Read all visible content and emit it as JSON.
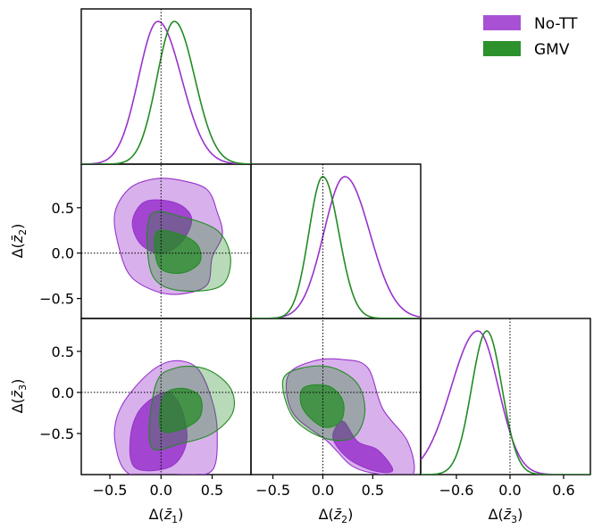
{
  "chart_data": {
    "type": "triangle-corner-plot",
    "parameters": [
      "Δ(z̄1)",
      "Δ(z̄2)",
      "Δ(z̄3)"
    ],
    "axis_labels": {
      "p1": {
        "pre": "Δ(",
        "z": "z̄",
        "sub": "1",
        "post": ")"
      },
      "p2": {
        "pre": "Δ(",
        "z": "z̄",
        "sub": "2",
        "post": ")"
      },
      "p3": {
        "pre": "Δ(",
        "z": "z̄",
        "sub": "3",
        "post": ")"
      }
    },
    "ranges": {
      "p1": [
        -0.78,
        0.88
      ],
      "p2": [
        -0.72,
        0.98
      ],
      "p3": [
        -1.0,
        0.9
      ]
    },
    "ticks": {
      "p1": {
        "values": [
          -0.5,
          0.0,
          0.5
        ],
        "labels": [
          "−0.5",
          "0.0",
          "0.5"
        ]
      },
      "p2_x": {
        "values": [
          -0.5,
          0.0,
          0.5
        ],
        "labels": [
          "−0.5",
          "0.0",
          "0.5"
        ]
      },
      "p2_y": {
        "values": [
          0.5,
          0.0,
          -0.5
        ],
        "labels": [
          "0.5",
          "0.0",
          "−0.5"
        ]
      },
      "p3_x": {
        "values": [
          -0.6,
          0.0,
          0.6
        ],
        "labels": [
          "−0.6",
          "0.0",
          "0.6"
        ]
      },
      "p3_y": {
        "values": [
          0.5,
          0.0,
          -0.5
        ],
        "labels": [
          "0.5",
          "0.0",
          "−0.5"
        ]
      }
    },
    "reference_lines": {
      "p1": 0.0,
      "p2": 0.0,
      "p3": 0.0
    },
    "series": [
      {
        "name": "No-TT",
        "color": "#9932cc",
        "marginals": {
          "p1": {
            "mean": -0.03,
            "sd_left": 0.19,
            "sd_right": 0.23
          },
          "p2": {
            "mean": 0.22,
            "sd_left": 0.21,
            "sd_right": 0.25
          },
          "p3": {
            "mean": -0.36,
            "sd_left": 0.3,
            "sd_right": 0.23
          }
        },
        "contours": {
          "p1_p2": {
            "outer": [
              [
                -0.05,
                0.82
              ],
              [
                0.2,
                0.8
              ],
              [
                0.45,
                0.7
              ],
              [
                0.55,
                0.45
              ],
              [
                0.6,
                0.2
              ],
              [
                0.5,
                -0.05
              ],
              [
                0.45,
                -0.35
              ],
              [
                0.2,
                -0.45
              ],
              [
                -0.05,
                -0.42
              ],
              [
                -0.3,
                -0.25
              ],
              [
                -0.42,
                0.1
              ],
              [
                -0.45,
                0.45
              ],
              [
                -0.3,
                0.72
              ]
            ],
            "inner": [
              [
                -0.15,
                0.57
              ],
              [
                0.15,
                0.55
              ],
              [
                0.3,
                0.38
              ],
              [
                0.2,
                0.12
              ],
              [
                0.0,
                0.0
              ],
              [
                -0.2,
                0.1
              ],
              [
                -0.28,
                0.35
              ]
            ]
          },
          "p1_p3": {
            "outer": [
              [
                -0.3,
                -1.0
              ],
              [
                -0.45,
                -0.6
              ],
              [
                -0.4,
                -0.2
              ],
              [
                -0.15,
                0.2
              ],
              [
                0.1,
                0.38
              ],
              [
                0.35,
                0.3
              ],
              [
                0.5,
                -0.1
              ],
              [
                0.55,
                -0.5
              ],
              [
                0.5,
                -0.95
              ],
              [
                0.2,
                -1.0
              ]
            ],
            "inner": [
              [
                -0.25,
                -0.92
              ],
              [
                -0.3,
                -0.55
              ],
              [
                -0.2,
                -0.2
              ],
              [
                0.05,
                0.0
              ],
              [
                0.2,
                -0.2
              ],
              [
                0.25,
                -0.6
              ],
              [
                0.1,
                -0.9
              ]
            ]
          },
          "p2_p3": {
            "outer": [
              [
                -0.35,
                0.2
              ],
              [
                -0.1,
                0.38
              ],
              [
                0.2,
                0.4
              ],
              [
                0.45,
                0.3
              ],
              [
                0.6,
                -0.2
              ],
              [
                0.85,
                -0.6
              ],
              [
                0.9,
                -1.0
              ],
              [
                0.6,
                -1.0
              ],
              [
                0.3,
                -0.9
              ],
              [
                0.05,
                -0.6
              ],
              [
                -0.3,
                -0.25
              ]
            ],
            "inner": [
              [
                0.2,
                -0.35
              ],
              [
                0.35,
                -0.6
              ],
              [
                0.55,
                -0.7
              ],
              [
                0.7,
                -0.95
              ],
              [
                0.5,
                -0.95
              ],
              [
                0.25,
                -0.8
              ],
              [
                0.1,
                -0.55
              ]
            ]
          }
        }
      },
      {
        "name": "GMV",
        "color": "#228b22",
        "marginals": {
          "p1": {
            "mean": 0.13,
            "sd_left": 0.17,
            "sd_right": 0.2
          },
          "p2": {
            "mean": 0.0,
            "sd_left": 0.14,
            "sd_right": 0.16
          },
          "p3": {
            "mean": -0.26,
            "sd_left": 0.17,
            "sd_right": 0.17
          }
        },
        "contours": {
          "p1_p2": {
            "outer": [
              [
                -0.1,
                0.42
              ],
              [
                0.2,
                0.4
              ],
              [
                0.55,
                0.25
              ],
              [
                0.68,
                -0.05
              ],
              [
                0.6,
                -0.35
              ],
              [
                0.3,
                -0.42
              ],
              [
                0.0,
                -0.35
              ],
              [
                -0.12,
                -0.1
              ]
            ],
            "inner": [
              [
                -0.05,
                0.22
              ],
              [
                0.15,
                0.22
              ],
              [
                0.35,
                0.1
              ],
              [
                0.38,
                -0.1
              ],
              [
                0.2,
                -0.22
              ],
              [
                -0.02,
                -0.15
              ]
            ]
          },
          "p1_p3": {
            "outer": [
              [
                -0.1,
                -0.65
              ],
              [
                -0.05,
                0.1
              ],
              [
                0.15,
                0.3
              ],
              [
                0.45,
                0.28
              ],
              [
                0.68,
                0.05
              ],
              [
                0.7,
                -0.25
              ],
              [
                0.5,
                -0.5
              ],
              [
                0.2,
                -0.62
              ]
            ],
            "inner": [
              [
                0.0,
                -0.45
              ],
              [
                0.02,
                -0.05
              ],
              [
                0.2,
                0.05
              ],
              [
                0.38,
                -0.05
              ],
              [
                0.38,
                -0.3
              ],
              [
                0.2,
                -0.45
              ]
            ]
          },
          "p2_p3": {
            "outer": [
              [
                -0.4,
                0.15
              ],
              [
                -0.2,
                0.3
              ],
              [
                0.1,
                0.3
              ],
              [
                0.35,
                0.1
              ],
              [
                0.42,
                -0.25
              ],
              [
                0.3,
                -0.55
              ],
              [
                0.0,
                -0.55
              ],
              [
                -0.3,
                -0.3
              ]
            ],
            "inner": [
              [
                -0.2,
                0.05
              ],
              [
                0.05,
                0.08
              ],
              [
                0.2,
                -0.1
              ],
              [
                0.18,
                -0.35
              ],
              [
                0.0,
                -0.42
              ],
              [
                -0.2,
                -0.2
              ]
            ]
          }
        }
      }
    ]
  }
}
